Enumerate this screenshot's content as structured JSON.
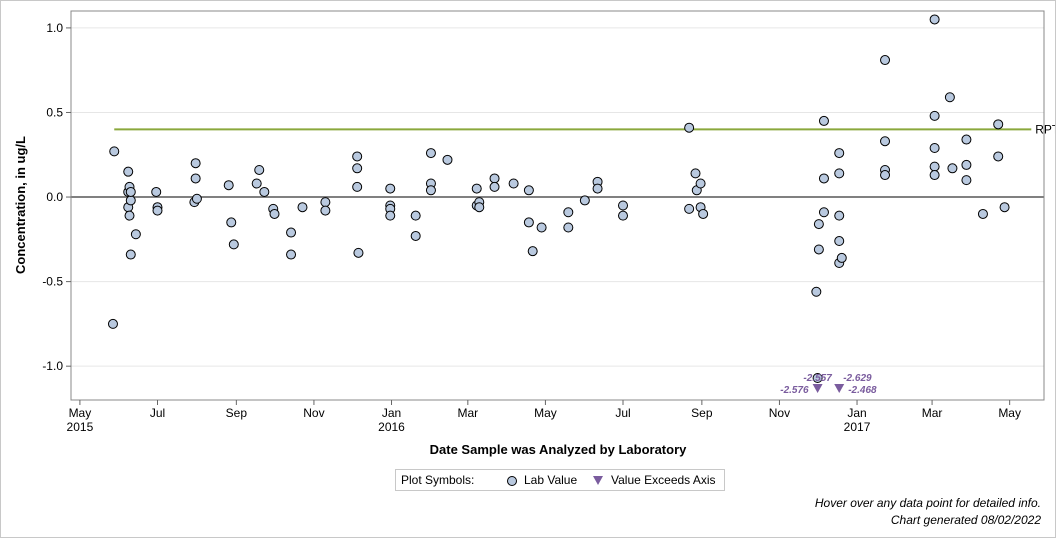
{
  "chart_data": {
    "type": "scatter",
    "title": "",
    "xlabel": "Date Sample was Analyzed by Laboratory",
    "ylabel": "Concentration, in ug/L",
    "ylim": [
      -1.2,
      1.1
    ],
    "xlim": [
      "2015-04-24",
      "2017-05-28"
    ],
    "yticks": [
      "1.0",
      "0.5",
      "0.0",
      "-0.5",
      "-1.0"
    ],
    "ytick_values": [
      1.0,
      0.5,
      0.0,
      -0.5,
      -1.0
    ],
    "xticks": [
      {
        "date": "2015-05-01",
        "label": "May",
        "year": "2015"
      },
      {
        "date": "2015-07-01",
        "label": "Jul",
        "year": ""
      },
      {
        "date": "2015-09-01",
        "label": "Sep",
        "year": ""
      },
      {
        "date": "2015-11-01",
        "label": "Nov",
        "year": ""
      },
      {
        "date": "2016-01-01",
        "label": "Jan",
        "year": "2016"
      },
      {
        "date": "2016-03-01",
        "label": "Mar",
        "year": ""
      },
      {
        "date": "2016-05-01",
        "label": "May",
        "year": ""
      },
      {
        "date": "2016-07-01",
        "label": "Jul",
        "year": ""
      },
      {
        "date": "2016-09-01",
        "label": "Sep",
        "year": ""
      },
      {
        "date": "2016-11-01",
        "label": "Nov",
        "year": ""
      },
      {
        "date": "2017-01-01",
        "label": "Jan",
        "year": "2017"
      },
      {
        "date": "2017-03-01",
        "label": "Mar",
        "year": ""
      },
      {
        "date": "2017-05-01",
        "label": "May",
        "year": ""
      }
    ],
    "grid": "horizontal",
    "reference_line": {
      "label": "RPT Level",
      "value": 0.4,
      "start": "2015-05-28",
      "end": "2017-05-18",
      "color": "#8aa83c"
    },
    "zero_line": {
      "value": 0.0,
      "color": "#808080"
    },
    "series": [
      {
        "name": "Lab Value",
        "marker": "circle",
        "color": "#b9c9df",
        "points": [
          {
            "x": "2015-05-27",
            "y": -0.75
          },
          {
            "x": "2015-05-28",
            "y": 0.27
          },
          {
            "x": "2015-06-08",
            "y": 0.15
          },
          {
            "x": "2015-06-08",
            "y": 0.03
          },
          {
            "x": "2015-06-08",
            "y": -0.06
          },
          {
            "x": "2015-06-09",
            "y": -0.11
          },
          {
            "x": "2015-06-09",
            "y": 0.06
          },
          {
            "x": "2015-06-10",
            "y": -0.02
          },
          {
            "x": "2015-06-10",
            "y": 0.03
          },
          {
            "x": "2015-06-10",
            "y": -0.34
          },
          {
            "x": "2015-06-14",
            "y": -0.22
          },
          {
            "x": "2015-06-30",
            "y": 0.03
          },
          {
            "x": "2015-07-01",
            "y": -0.06
          },
          {
            "x": "2015-07-01",
            "y": -0.08
          },
          {
            "x": "2015-07-30",
            "y": -0.03
          },
          {
            "x": "2015-07-31",
            "y": 0.2
          },
          {
            "x": "2015-07-31",
            "y": 0.11
          },
          {
            "x": "2015-08-01",
            "y": -0.01
          },
          {
            "x": "2015-08-26",
            "y": 0.07
          },
          {
            "x": "2015-08-28",
            "y": -0.15
          },
          {
            "x": "2015-08-30",
            "y": -0.28
          },
          {
            "x": "2015-09-17",
            "y": 0.08
          },
          {
            "x": "2015-09-19",
            "y": 0.16
          },
          {
            "x": "2015-09-23",
            "y": 0.03
          },
          {
            "x": "2015-09-30",
            "y": -0.07
          },
          {
            "x": "2015-10-01",
            "y": -0.1
          },
          {
            "x": "2015-10-14",
            "y": -0.21
          },
          {
            "x": "2015-10-14",
            "y": -0.34
          },
          {
            "x": "2015-10-23",
            "y": -0.06
          },
          {
            "x": "2015-11-10",
            "y": -0.03
          },
          {
            "x": "2015-11-10",
            "y": -0.08
          },
          {
            "x": "2015-12-05",
            "y": 0.24
          },
          {
            "x": "2015-12-05",
            "y": 0.17
          },
          {
            "x": "2015-12-05",
            "y": 0.06
          },
          {
            "x": "2015-12-06",
            "y": -0.33
          },
          {
            "x": "2015-12-31",
            "y": 0.05
          },
          {
            "x": "2015-12-31",
            "y": -0.05
          },
          {
            "x": "2015-12-31",
            "y": -0.07
          },
          {
            "x": "2015-12-31",
            "y": -0.11
          },
          {
            "x": "2016-01-20",
            "y": -0.11
          },
          {
            "x": "2016-01-20",
            "y": -0.23
          },
          {
            "x": "2016-02-01",
            "y": 0.26
          },
          {
            "x": "2016-02-01",
            "y": 0.08
          },
          {
            "x": "2016-02-01",
            "y": 0.04
          },
          {
            "x": "2016-02-14",
            "y": 0.22
          },
          {
            "x": "2016-03-08",
            "y": 0.05
          },
          {
            "x": "2016-03-08",
            "y": -0.05
          },
          {
            "x": "2016-03-10",
            "y": -0.03
          },
          {
            "x": "2016-03-10",
            "y": -0.06
          },
          {
            "x": "2016-03-22",
            "y": 0.11
          },
          {
            "x": "2016-03-22",
            "y": 0.06
          },
          {
            "x": "2016-04-06",
            "y": 0.08
          },
          {
            "x": "2016-04-18",
            "y": 0.04
          },
          {
            "x": "2016-04-18",
            "y": -0.15
          },
          {
            "x": "2016-04-21",
            "y": -0.32
          },
          {
            "x": "2016-04-28",
            "y": -0.18
          },
          {
            "x": "2016-05-19",
            "y": -0.09
          },
          {
            "x": "2016-05-19",
            "y": -0.18
          },
          {
            "x": "2016-06-01",
            "y": -0.02
          },
          {
            "x": "2016-06-11",
            "y": 0.09
          },
          {
            "x": "2016-06-11",
            "y": 0.05
          },
          {
            "x": "2016-07-01",
            "y": -0.05
          },
          {
            "x": "2016-07-01",
            "y": -0.11
          },
          {
            "x": "2016-08-22",
            "y": 0.41
          },
          {
            "x": "2016-08-22",
            "y": -0.07
          },
          {
            "x": "2016-08-27",
            "y": 0.14
          },
          {
            "x": "2016-08-28",
            "y": 0.04
          },
          {
            "x": "2016-08-31",
            "y": 0.08
          },
          {
            "x": "2016-08-31",
            "y": -0.06
          },
          {
            "x": "2016-09-02",
            "y": -0.1
          },
          {
            "x": "2016-11-30",
            "y": -0.56
          },
          {
            "x": "2016-12-01",
            "y": -1.07
          },
          {
            "x": "2016-12-02",
            "y": -0.16
          },
          {
            "x": "2016-12-02",
            "y": -0.31
          },
          {
            "x": "2016-12-06",
            "y": 0.45
          },
          {
            "x": "2016-12-06",
            "y": 0.11
          },
          {
            "x": "2016-12-06",
            "y": -0.09
          },
          {
            "x": "2016-12-18",
            "y": 0.26
          },
          {
            "x": "2016-12-18",
            "y": 0.14
          },
          {
            "x": "2016-12-18",
            "y": -0.11
          },
          {
            "x": "2016-12-18",
            "y": -0.26
          },
          {
            "x": "2016-12-18",
            "y": -0.39
          },
          {
            "x": "2016-12-20",
            "y": -0.36
          },
          {
            "x": "2017-01-23",
            "y": 0.81
          },
          {
            "x": "2017-01-23",
            "y": 0.33
          },
          {
            "x": "2017-01-23",
            "y": 0.16
          },
          {
            "x": "2017-01-23",
            "y": 0.13
          },
          {
            "x": "2017-03-03",
            "y": 1.05
          },
          {
            "x": "2017-03-03",
            "y": 0.48
          },
          {
            "x": "2017-03-03",
            "y": 0.29
          },
          {
            "x": "2017-03-03",
            "y": 0.18
          },
          {
            "x": "2017-03-03",
            "y": 0.13
          },
          {
            "x": "2017-03-15",
            "y": 0.59
          },
          {
            "x": "2017-03-17",
            "y": 0.17
          },
          {
            "x": "2017-03-28",
            "y": 0.34
          },
          {
            "x": "2017-03-28",
            "y": 0.19
          },
          {
            "x": "2017-03-28",
            "y": 0.1
          },
          {
            "x": "2017-04-10",
            "y": -0.1
          },
          {
            "x": "2017-04-22",
            "y": 0.43
          },
          {
            "x": "2017-04-22",
            "y": 0.24
          },
          {
            "x": "2017-04-27",
            "y": -0.06
          }
        ]
      },
      {
        "name": "Value Exceeds Axis",
        "marker": "triangle-down",
        "color": "#7a5c9e",
        "points": [
          {
            "x": "2016-12-01",
            "y": -2.557,
            "label": "-2.557"
          },
          {
            "x": "2016-12-01",
            "y": -2.576,
            "label": "-2.576"
          },
          {
            "x": "2016-12-18",
            "y": -2.629,
            "label": "-2.629"
          },
          {
            "x": "2016-12-18",
            "y": -2.468,
            "label": "-2.468"
          }
        ]
      }
    ]
  },
  "legend": {
    "heading": "Plot Symbols:",
    "items": [
      "Lab Value",
      "Value Exceeds Axis"
    ]
  },
  "footnotes": {
    "hover": "Hover over any data point for detailed info.",
    "generated": "Chart generated 08/02/2022"
  }
}
